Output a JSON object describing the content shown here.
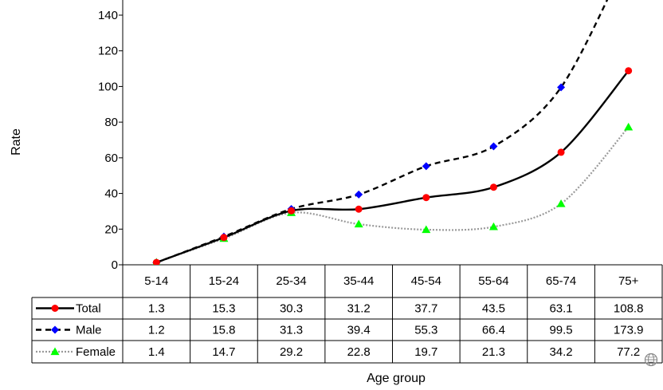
{
  "chart_data": {
    "type": "line",
    "categories": [
      "5-14",
      "15-24",
      "25-34",
      "35-44",
      "45-54",
      "55-64",
      "65-74",
      "75+"
    ],
    "series": [
      {
        "name": "Total",
        "values": [
          1.3,
          15.3,
          30.3,
          31.2,
          37.7,
          43.5,
          63.1,
          108.8
        ],
        "color": "#000000",
        "marker_color": "#ff0000",
        "marker": "circle",
        "line": "solid"
      },
      {
        "name": "Male",
        "values": [
          1.2,
          15.8,
          31.3,
          39.4,
          55.3,
          66.4,
          99.5,
          173.9
        ],
        "color": "#000000",
        "marker_color": "#0000ff",
        "marker": "diamond",
        "line": "dashed"
      },
      {
        "name": "Female",
        "values": [
          1.4,
          14.7,
          29.2,
          22.8,
          19.7,
          21.3,
          34.2,
          77.2
        ],
        "color": "#9a9a9a",
        "marker_color": "#00ff00",
        "marker": "triangle",
        "line": "dotted"
      }
    ],
    "xlabel": "Age group",
    "ylabel": "Rate",
    "ylim": [
      0,
      140
    ],
    "yticks": [
      0,
      20,
      40,
      60,
      80,
      100,
      120,
      140
    ],
    "grid": false,
    "legend": "data-table-left",
    "data_table": true
  },
  "logo": {
    "icon": "globe-icon"
  }
}
